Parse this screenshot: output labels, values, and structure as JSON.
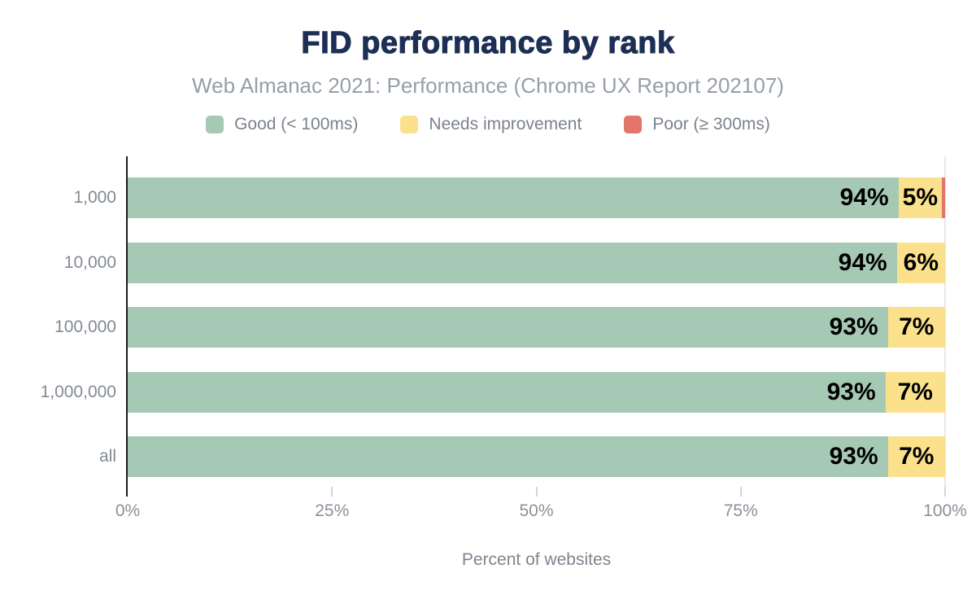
{
  "chart_data": {
    "type": "bar",
    "orientation": "horizontal",
    "stacked": true,
    "title": "FID performance by rank",
    "subtitle": "Web Almanac 2021: Performance (Chrome UX Report 202107)",
    "categories": [
      "1,000",
      "10,000",
      "100,000",
      "1,000,000",
      "all"
    ],
    "series": [
      {
        "name": "Good (< 100ms)",
        "color": "#a6c9b6",
        "values": [
          94,
          94,
          93,
          93,
          93
        ],
        "labels": [
          "94%",
          "94%",
          "93%",
          "93%",
          "93%"
        ],
        "render_widths": [
          94.3,
          94.1,
          93.0,
          92.7,
          93.0
        ]
      },
      {
        "name": "Needs improvement",
        "color": "#fce18c",
        "values": [
          5,
          6,
          7,
          7,
          7
        ],
        "labels": [
          "5%",
          "6%",
          "7%",
          "7%",
          "7%"
        ],
        "render_widths": [
          5.3,
          5.9,
          7.0,
          7.3,
          7.0
        ]
      },
      {
        "name": "Poor (≥ 300ms)",
        "color": "#e4756a",
        "values": [
          1,
          0,
          0,
          0,
          0
        ],
        "labels": [
          "",
          "",
          "",
          "",
          ""
        ],
        "render_widths": [
          0.4,
          0,
          0,
          0,
          0
        ]
      }
    ],
    "xlabel": "Percent of websites",
    "ylabel": "",
    "x_ticks": [
      "0%",
      "25%",
      "50%",
      "75%",
      "100%"
    ],
    "xlim": [
      0,
      100
    ],
    "legend_position": "top",
    "grid": "only-100-percent-line",
    "value_label_color": "#000000"
  }
}
